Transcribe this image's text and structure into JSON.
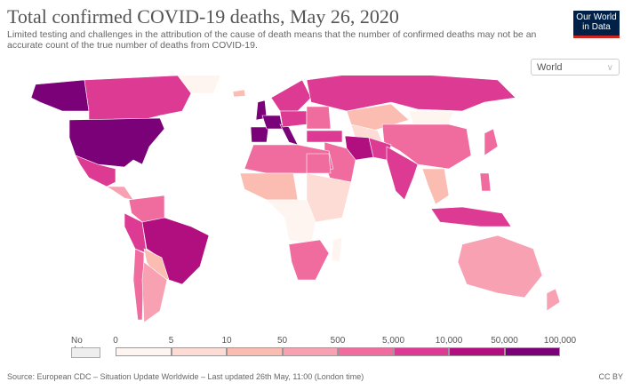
{
  "header": {
    "title": "Total confirmed COVID-19 deaths, May 26, 2020",
    "subtitle": "Limited testing and challenges in the attribution of the cause of death means that the number of confirmed deaths may not be an accurate count of the true number of deaths from COVID-19.",
    "logo_line1": "Our World",
    "logo_line2": "in Data"
  },
  "region_select": {
    "value": "World"
  },
  "legend": {
    "no_data_label": "No data",
    "no_data_color": "#eeeeee",
    "ticks": [
      "0",
      "5",
      "10",
      "50",
      "500",
      "5,000",
      "10,000",
      "50,000",
      "100,000"
    ],
    "colors": [
      "#fef4f0",
      "#fddcd6",
      "#fbbdb2",
      "#f7a1b3",
      "#f06b9e",
      "#dd3a93",
      "#b10f80",
      "#7a0177"
    ]
  },
  "footer": {
    "source": "Source: European CDC – Situation Update Worldwide – Last updated 26th May, 11:00 (London time)",
    "license": "CC BY"
  }
}
